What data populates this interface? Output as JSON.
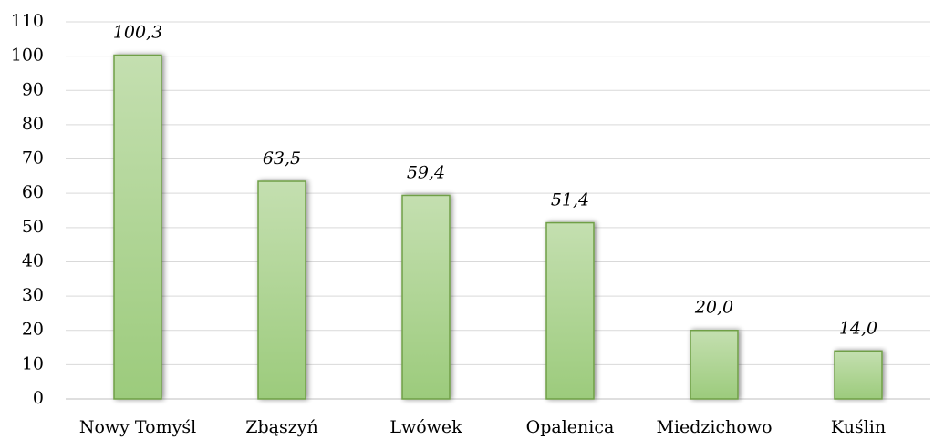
{
  "chart_data": {
    "type": "bar",
    "categories": [
      "Nowy Tomyśl",
      "Zbąszyń",
      "Lwówek",
      "Opalenica",
      "Miedzichowo",
      "Kuślin"
    ],
    "values": [
      100.3,
      63.5,
      59.4,
      51.4,
      20.0,
      14.0
    ],
    "value_labels": [
      "100,3",
      "63,5",
      "59,4",
      "51,4",
      "20,0",
      "14,0"
    ],
    "color": "#9ccb7c",
    "ylim": [
      0,
      110
    ],
    "yticks": [
      0,
      10,
      20,
      30,
      40,
      50,
      60,
      70,
      80,
      90,
      100,
      110
    ],
    "grid": true
  }
}
